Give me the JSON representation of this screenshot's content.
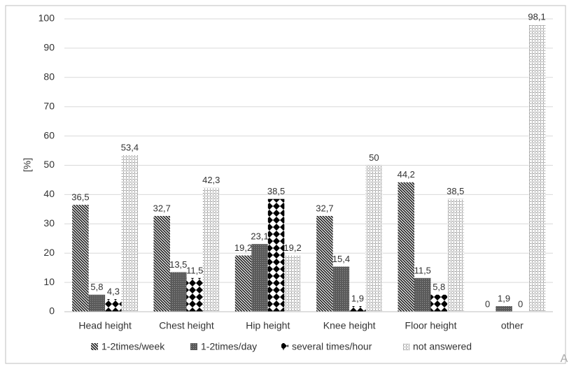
{
  "chart_data": {
    "type": "bar",
    "y_label": "[%]",
    "panel_label": "A",
    "categories": [
      "Head height",
      "Chest height",
      "Hip height",
      "Knee height",
      "Floor height",
      "other"
    ],
    "series": [
      {
        "name": "1-2times/week",
        "color": "#1a1a1a",
        "values": [
          36.5,
          32.7,
          19.2,
          32.7,
          44.2,
          0
        ],
        "value_labels": [
          "36,5",
          "32,7",
          "19,2",
          "32,7",
          "44,2",
          "0"
        ]
      },
      {
        "name": "1-2times/day",
        "color": "#5a5a5a",
        "values": [
          5.8,
          13.5,
          23.1,
          15.4,
          11.5,
          1.9
        ],
        "value_labels": [
          "5,8",
          "13,5",
          "23,1",
          "15,4",
          "11,5",
          "1,9"
        ]
      },
      {
        "name": "several times/hour",
        "color": "#000000",
        "values": [
          4.3,
          11.5,
          38.5,
          1.9,
          5.8,
          0
        ],
        "value_labels": [
          "4,3",
          "11,5",
          "38,5",
          "1,9",
          "5,8",
          "0"
        ]
      },
      {
        "name": "not answered",
        "color": "#555555",
        "values": [
          53.4,
          42.3,
          19.2,
          50,
          38.5,
          98.1
        ],
        "value_labels": [
          "53,4",
          "42,3",
          "19,2",
          "50",
          "38,5",
          "98,1"
        ]
      }
    ],
    "ylim": [
      0,
      100
    ],
    "yticks": [
      0,
      10,
      20,
      30,
      40,
      50,
      60,
      70,
      80,
      90,
      100
    ],
    "grid": true,
    "legend": "bottom"
  }
}
